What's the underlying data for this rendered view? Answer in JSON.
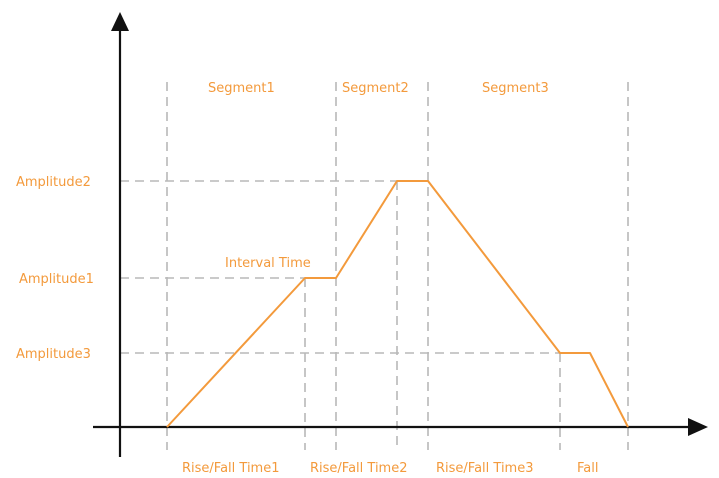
{
  "colors": {
    "accent": "#f39a3c",
    "guide": "#b8b8b8",
    "axis": "#111111"
  },
  "segments": {
    "segment1": "Segment1",
    "segment2": "Segment2",
    "segment3": "Segment3"
  },
  "amplitudes": {
    "amplitude1": "Amplitude1",
    "amplitude2": "Amplitude2",
    "amplitude3": "Amplitude3"
  },
  "annotations": {
    "interval_time": "Interval Time"
  },
  "time_labels": {
    "rise_fall_time1": "Rise/Fall Time1",
    "rise_fall_time2": "Rise/Fall Time2",
    "rise_fall_time3": "Rise/Fall Time3",
    "fall": "Fall"
  }
}
